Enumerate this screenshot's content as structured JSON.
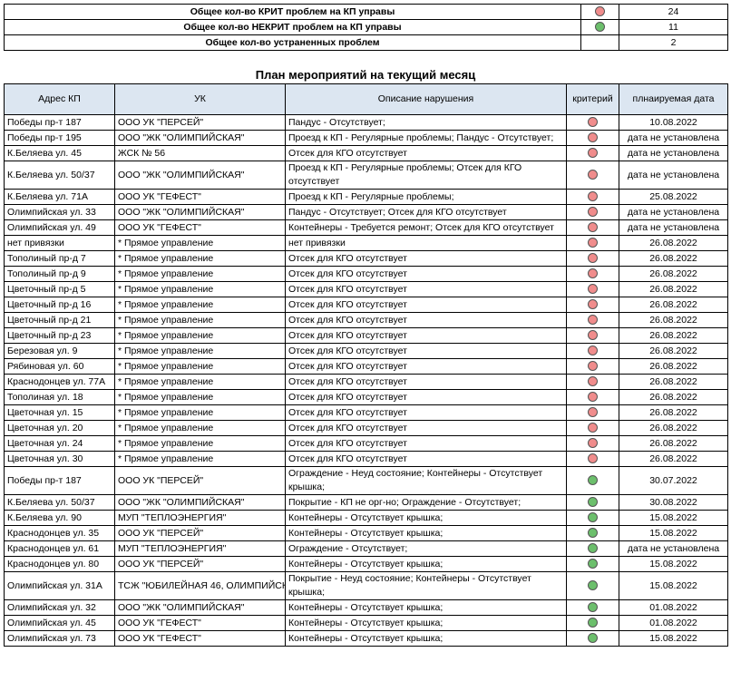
{
  "summary": {
    "rows": [
      {
        "label": "Общее кол-во КРИТ проблем на КП управы",
        "indicator": "#f08c8c",
        "value": 24
      },
      {
        "label": "Общее кол-во НЕКРИТ проблем на КП управы",
        "indicator": "#6cbf6c",
        "value": 11
      },
      {
        "label": "Общее кол-во устраненных проблем",
        "value": 2
      }
    ]
  },
  "plan": {
    "title": "План мероприятий на текущий месяц",
    "headers": [
      "Адрес КП",
      "УК",
      "Описание нарушения",
      "критерий",
      "плнаируемая дата"
    ],
    "rows": [
      {
        "address": "Победы пр-т 187",
        "uk": "ООО УК \"ПЕРСЕЙ\"",
        "description": "Пандус - Отсутствует;",
        "criterion": "#f08c8c",
        "date": "10.08.2022"
      },
      {
        "address": "Победы пр-т 195",
        "uk": "ООО \"ЖК \"ОЛИМПИЙСКАЯ\"",
        "description": "Проезд к КП - Регулярные проблемы; Пандус - Отсутствует;",
        "criterion": "#f08c8c",
        "date": "дата не установлена"
      },
      {
        "address": "К.Беляева ул. 45",
        "uk": "ЖСК № 56",
        "description": "Отсек для КГО отсутствует",
        "criterion": "#f08c8c",
        "date": "дата не установлена"
      },
      {
        "address": "К.Беляева ул. 50/37",
        "uk": "ООО \"ЖК \"ОЛИМПИЙСКАЯ\"",
        "description": "Проезд к КП - Регулярные проблемы; Отсек для КГО отсутствует",
        "criterion": "#f08c8c",
        "date": "дата не установлена"
      },
      {
        "address": "К.Беляева ул. 71А",
        "uk": "ООО УК \"ГЕФЕСТ\"",
        "description": "Проезд к КП - Регулярные проблемы;",
        "criterion": "#f08c8c",
        "date": "25.08.2022"
      },
      {
        "address": "Олимпийская ул. 33",
        "uk": "ООО \"ЖК \"ОЛИМПИЙСКАЯ\"",
        "description": "Пандус - Отсутствует; Отсек для КГО отсутствует",
        "criterion": "#f08c8c",
        "date": "дата не установлена"
      },
      {
        "address": "Олимпийская ул. 49",
        "uk": "ООО УК \"ГЕФЕСТ\"",
        "description": "Контейнеры - Требуется ремонт; Отсек для КГО отсутствует",
        "criterion": "#f08c8c",
        "date": "дата не установлена"
      },
      {
        "address": "нет привязки",
        "uk": "* Прямое управление",
        "description": "нет привязки",
        "criterion": "#f08c8c",
        "date": "26.08.2022"
      },
      {
        "address": "Тополиный пр-д 7",
        "uk": "* Прямое управление",
        "description": "Отсек для КГО отсутствует",
        "criterion": "#f08c8c",
        "date": "26.08.2022"
      },
      {
        "address": "Тополиный пр-д 9",
        "uk": "* Прямое управление",
        "description": "Отсек для КГО отсутствует",
        "criterion": "#f08c8c",
        "date": "26.08.2022"
      },
      {
        "address": "Цветочный пр-д 5",
        "uk": "* Прямое управление",
        "description": "Отсек для КГО отсутствует",
        "criterion": "#f08c8c",
        "date": "26.08.2022"
      },
      {
        "address": "Цветочный пр-д 16",
        "uk": "* Прямое управление",
        "description": "Отсек для КГО отсутствует",
        "criterion": "#f08c8c",
        "date": "26.08.2022"
      },
      {
        "address": "Цветочный пр-д 21",
        "uk": "* Прямое управление",
        "description": "Отсек для КГО отсутствует",
        "criterion": "#f08c8c",
        "date": "26.08.2022"
      },
      {
        "address": "Цветочный пр-д 23",
        "uk": "* Прямое управление",
        "description": "Отсек для КГО отсутствует",
        "criterion": "#f08c8c",
        "date": "26.08.2022"
      },
      {
        "address": "Березовая ул. 9",
        "uk": "* Прямое управление",
        "description": "Отсек для КГО отсутствует",
        "criterion": "#f08c8c",
        "date": "26.08.2022"
      },
      {
        "address": "Рябиновая ул. 60",
        "uk": "* Прямое управление",
        "description": "Отсек для КГО отсутствует",
        "criterion": "#f08c8c",
        "date": "26.08.2022"
      },
      {
        "address": "Краснодонцев ул. 77А",
        "uk": "* Прямое управление",
        "description": "Отсек для КГО отсутствует",
        "criterion": "#f08c8c",
        "date": "26.08.2022"
      },
      {
        "address": "Тополиная ул. 18",
        "uk": "* Прямое управление",
        "description": "Отсек для КГО отсутствует",
        "criterion": "#f08c8c",
        "date": "26.08.2022"
      },
      {
        "address": "Цветочная ул. 15",
        "uk": "* Прямое управление",
        "description": "Отсек для КГО отсутствует",
        "criterion": "#f08c8c",
        "date": "26.08.2022"
      },
      {
        "address": "Цветочная ул. 20",
        "uk": "* Прямое управление",
        "description": "Отсек для КГО отсутствует",
        "criterion": "#f08c8c",
        "date": "26.08.2022"
      },
      {
        "address": "Цветочная ул. 24",
        "uk": "* Прямое управление",
        "description": "Отсек для КГО отсутствует",
        "criterion": "#f08c8c",
        "date": "26.08.2022"
      },
      {
        "address": "Цветочная ул. 30",
        "uk": "* Прямое управление",
        "description": "Отсек для КГО отсутствует",
        "criterion": "#f08c8c",
        "date": "26.08.2022"
      },
      {
        "address": "Победы пр-т 187",
        "uk": "ООО УК \"ПЕРСЕЙ\"",
        "description": "Ограждение - Неуд состояние; Контейнеры - Отсутствует крышка;",
        "criterion": "#6cbf6c",
        "date": "30.07.2022"
      },
      {
        "address": "К.Беляева ул. 50/37",
        "uk": "ООО \"ЖК \"ОЛИМПИЙСКАЯ\"",
        "description": "Покрытие - КП не орг-но; Ограждение - Отсутствует;",
        "criterion": "#6cbf6c",
        "date": "30.08.2022"
      },
      {
        "address": "К.Беляева ул. 90",
        "uk": "МУП \"ТЕПЛОЭНЕРГИЯ\"",
        "description": "Контейнеры - Отсутствует крышка;",
        "criterion": "#6cbf6c",
        "date": "15.08.2022"
      },
      {
        "address": "Краснодонцев ул. 35",
        "uk": "ООО УК \"ПЕРСЕЙ\"",
        "description": "Контейнеры - Отсутствует крышка;",
        "criterion": "#6cbf6c",
        "date": "15.08.2022"
      },
      {
        "address": "Краснодонцев ул. 61",
        "uk": "МУП \"ТЕПЛОЭНЕРГИЯ\"",
        "description": "Ограждение - Отсутствует;",
        "criterion": "#6cbf6c",
        "date": "дата не установлена"
      },
      {
        "address": "Краснодонцев ул. 80",
        "uk": "ООО УК \"ПЕРСЕЙ\"",
        "description": "Контейнеры - Отсутствует крышка;",
        "criterion": "#6cbf6c",
        "date": "15.08.2022"
      },
      {
        "address": "Олимпийская ул. 31А",
        "uk": "ТСЖ \"ЮБИЛЕЙНАЯ 46, ОЛИМПИЙСК",
        "description": "Покрытие - Неуд состояние; Контейнеры - Отсутствует крышка;",
        "criterion": "#6cbf6c",
        "date": "15.08.2022"
      },
      {
        "address": "Олимпийская ул. 32",
        "uk": "ООО \"ЖК \"ОЛИМПИЙСКАЯ\"",
        "description": "Контейнеры - Отсутствует крышка;",
        "criterion": "#6cbf6c",
        "date": "01.08.2022"
      },
      {
        "address": "Олимпийская ул. 45",
        "uk": "ООО УК \"ГЕФЕСТ\"",
        "description": "Контейнеры - Отсутствует крышка;",
        "criterion": "#6cbf6c",
        "date": "01.08.2022"
      },
      {
        "address": "Олимпийская ул. 73",
        "uk": "ООО УК \"ГЕФЕСТ\"",
        "description": "Контейнеры - Отсутствует крышка;",
        "criterion": "#6cbf6c",
        "date": "15.08.2022"
      }
    ]
  }
}
